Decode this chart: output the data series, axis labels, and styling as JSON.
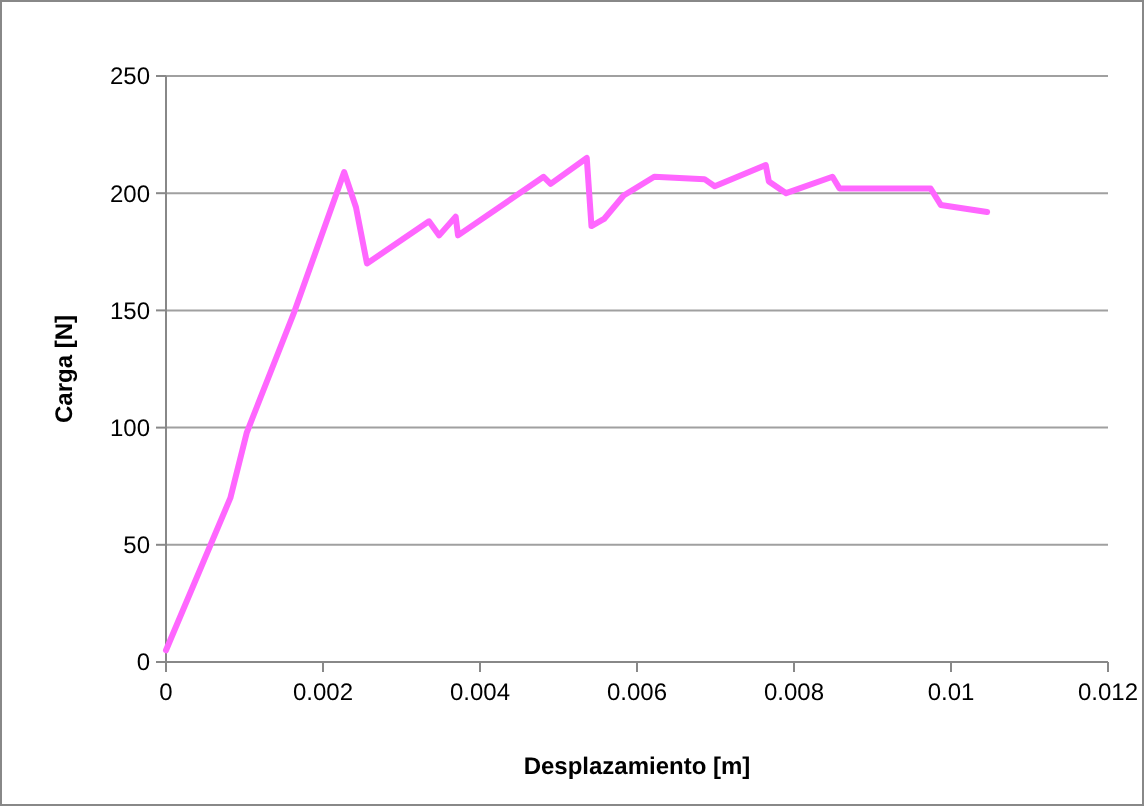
{
  "chart_data": {
    "type": "line",
    "xlabel": "Desplazamiento [m]",
    "ylabel": "Carga [N]",
    "xlim": [
      0,
      0.012
    ],
    "xticks": [
      0,
      0.002,
      0.004,
      0.006,
      0.008,
      0.01,
      0.012
    ],
    "ylim": [
      0,
      250
    ],
    "yticks": [
      0,
      50,
      100,
      150,
      200,
      250
    ],
    "grid": "y",
    "marker": "none",
    "line_style": "solid",
    "series": [
      {
        "color": "#ff66ff",
        "x": [
          0,
          0.00082,
          0.00103,
          0.00163,
          0.00227,
          0.00242,
          0.00256,
          0.00335,
          0.00348,
          0.00369,
          0.00372,
          0.00481,
          0.0049,
          0.00536,
          0.00542,
          0.00558,
          0.00583,
          0.00622,
          0.00686,
          0.00699,
          0.00764,
          0.00768,
          0.0079,
          0.00849,
          0.00858,
          0.00974,
          0.00987,
          0.01046
        ],
        "values": [
          5,
          70,
          98,
          149,
          209,
          194,
          170,
          188,
          182,
          190,
          182,
          207,
          204,
          215,
          186,
          189,
          199,
          207,
          206,
          203,
          212,
          205,
          200,
          207,
          202,
          202,
          195,
          192
        ]
      }
    ]
  }
}
